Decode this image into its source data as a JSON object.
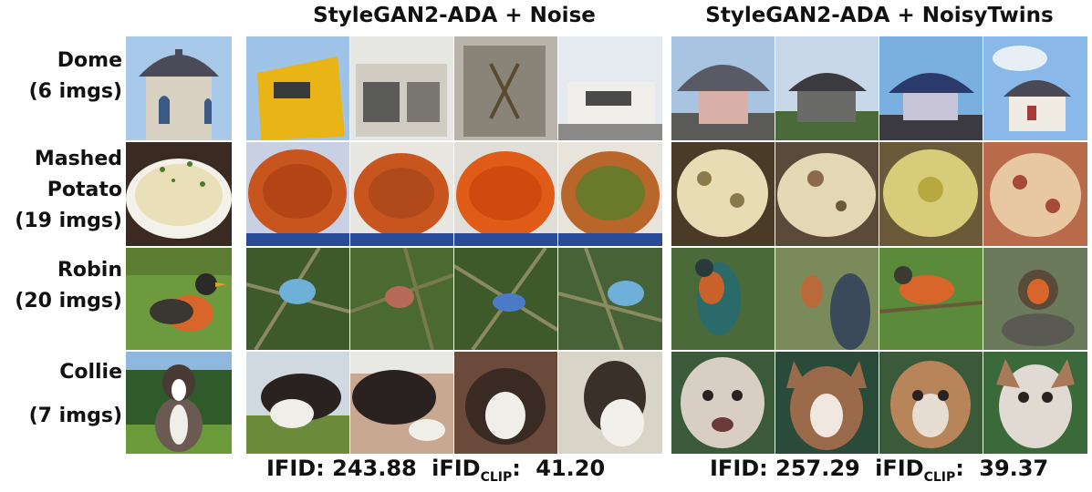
{
  "header": {
    "left_title": "StyleGAN2-ADA + Noise",
    "right_title": "StyleGAN2-ADA + NoisyTwins"
  },
  "rows": [
    {
      "name": "Dome",
      "count": "(6 imgs)"
    },
    {
      "name": "Mashed Potato",
      "line1": "Mashed",
      "line2": "Potato",
      "count": "(19 imgs)"
    },
    {
      "name": "Robin",
      "count": "(20 imgs)"
    },
    {
      "name": "Collie",
      "count": "(7 imgs)"
    }
  ],
  "metrics": {
    "left": {
      "ifid_label": "IFID:",
      "ifid_value": "243.88",
      "iclip_label": "iFID",
      "iclip_sub": "CLIP",
      "iclip_colon": ":",
      "iclip_value": "41.20"
    },
    "right": {
      "ifid_label": "IFID:",
      "ifid_value": "257.29",
      "iclip_label": "iFID",
      "iclip_sub": "CLIP",
      "iclip_colon": ":",
      "iclip_value": "39.37"
    }
  },
  "palette": {
    "sky": "#9fc3e6",
    "dome_roof": "#4a4a58",
    "wall": "#d8cfc0",
    "potato": "#e9dfb8",
    "sauce": "#c8541e",
    "leaf_green": "#5a8a3a",
    "robin_orange": "#d8662a",
    "bird_blue": "#6fb0d8",
    "collie_dark": "#2a2220"
  }
}
